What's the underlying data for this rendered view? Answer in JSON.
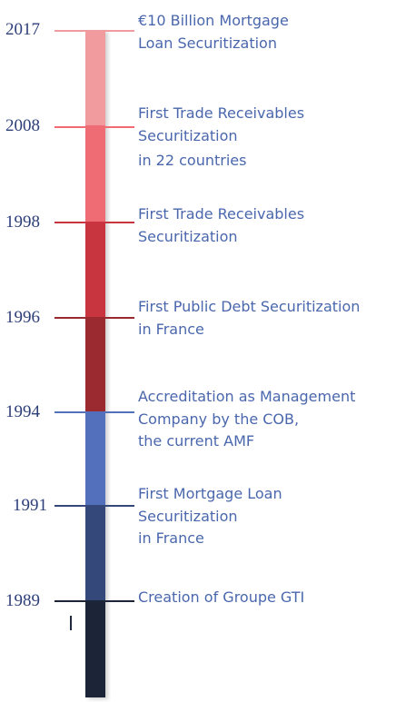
{
  "colors": {
    "seg_2017": "#f29b9f",
    "seg_2008": "#ef6c74",
    "seg_1998": "#c9353e",
    "seg_1996": "#9a2a30",
    "seg_1994": "#5370bd",
    "seg_1991": "#34497a",
    "seg_1989": "#1c2438",
    "year_text": "#2c3f78",
    "label_text": "#4a67ad"
  },
  "milestones": [
    {
      "year": "2017",
      "lines": [
        "€10 Billion Mortgage",
        "Loan Securitization"
      ]
    },
    {
      "year": "2008",
      "lines": [
        "First Trade Receivables",
        "Securitization",
        "in 22 countries"
      ]
    },
    {
      "year": "1998",
      "lines": [
        "First Trade Receivables",
        "Securitization"
      ]
    },
    {
      "year": "1996",
      "lines": [
        "First Public Debt Securitization",
        "in France"
      ]
    },
    {
      "year": "1994",
      "lines": [
        "Accreditation as Management",
        "Company by the COB,",
        "the current AMF"
      ]
    },
    {
      "year": "1991",
      "lines": [
        "First Mortgage Loan",
        "Securitization",
        "in France"
      ]
    },
    {
      "year": "1989",
      "lines": [
        "Creation of Groupe GTI"
      ]
    }
  ]
}
